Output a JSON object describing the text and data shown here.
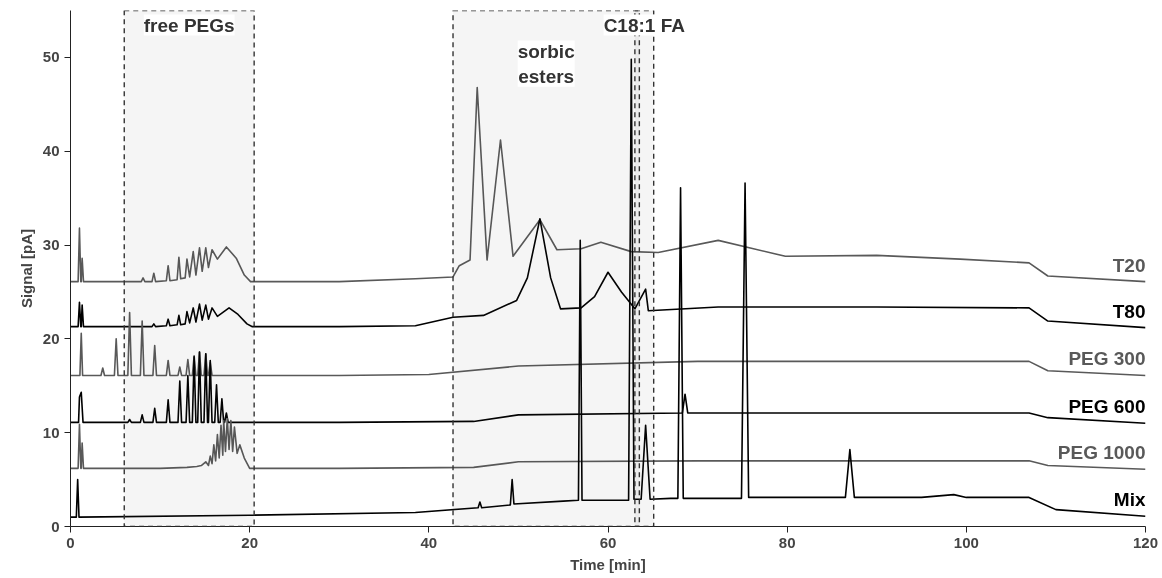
{
  "chart_data": {
    "type": "line",
    "xlabel": "Time [min]",
    "ylabel": "Signal [pA]",
    "xlim": [
      0,
      120
    ],
    "ylim": [
      0,
      55
    ],
    "xticks": [
      0,
      20,
      40,
      60,
      80,
      100,
      120
    ],
    "yticks": [
      0,
      10,
      20,
      30,
      40,
      50
    ],
    "grid": false,
    "marker": "none",
    "line_style": "solid",
    "series": [
      {
        "name": "T20",
        "color": "#595959",
        "x": [
          0,
          0.85,
          1.0,
          1.15,
          1.2,
          1.3,
          1.45,
          7.9,
          8.1,
          8.3,
          9.1,
          9.3,
          9.5,
          10.7,
          10.9,
          11.1,
          11.9,
          12.1,
          12.3,
          12.8,
          13.0,
          13.3,
          13.7,
          14.0,
          14.4,
          14.7,
          15.1,
          15.4,
          15.8,
          16.4,
          17.4,
          18.5,
          19.4,
          20.1,
          30,
          38.5,
          42.7,
          43.4,
          44.6,
          45.4,
          46.5,
          48.0,
          49.4,
          52.4,
          54.3,
          57.0,
          59.2,
          62.6,
          65.6,
          72.3,
          79.8,
          90,
          99.3,
          107,
          109.1,
          120
        ],
        "values": [
          26.1,
          26.1,
          31.8,
          26.1,
          26.1,
          28.6,
          26.1,
          26.1,
          26.5,
          26.1,
          26.1,
          27.0,
          26.1,
          26.2,
          27.8,
          26.2,
          26.3,
          28.7,
          26.4,
          26.5,
          28.5,
          26.6,
          29.3,
          26.8,
          29.7,
          27.2,
          29.7,
          27.6,
          29.5,
          28.5,
          29.8,
          28.6,
          26.8,
          26.1,
          26.1,
          26.4,
          26.6,
          27.8,
          28.4,
          46.8,
          28.4,
          41.2,
          28.8,
          32.7,
          29.5,
          29.6,
          30.3,
          29.3,
          29.2,
          30.5,
          28.8,
          28.9,
          28.5,
          28.1,
          26.7,
          26.1
        ]
      },
      {
        "name": "T80",
        "color": "#000000",
        "x": [
          0,
          0.85,
          1.0,
          1.15,
          1.2,
          1.3,
          1.45,
          9.1,
          9.3,
          9.5,
          10.7,
          10.9,
          11.1,
          11.9,
          12.1,
          12.3,
          12.8,
          13.0,
          13.3,
          13.7,
          14.0,
          14.4,
          14.7,
          15.1,
          15.4,
          15.8,
          16.4,
          17.7,
          18.7,
          19.7,
          20.3,
          30,
          38.5,
          42.7,
          46.1,
          49.8,
          51.0,
          52.4,
          53.6,
          54.7,
          57.0,
          58.5,
          60.0,
          61.5,
          63.0,
          64.2,
          64.5,
          72.3,
          90,
          107,
          109.1,
          120
        ],
        "values": [
          21.3,
          21.3,
          23.9,
          21.3,
          21.3,
          23.6,
          21.3,
          21.3,
          21.6,
          21.3,
          21.4,
          22.1,
          21.4,
          21.5,
          22.5,
          21.5,
          21.6,
          22.9,
          21.7,
          23.3,
          21.8,
          23.7,
          22.0,
          23.6,
          22.1,
          23.3,
          22.4,
          23.3,
          22.6,
          21.6,
          21.3,
          21.3,
          21.4,
          22.3,
          22.5,
          24.1,
          26.5,
          32.8,
          26.5,
          23.2,
          23.3,
          24.5,
          27.1,
          25.0,
          23.2,
          25.3,
          23.0,
          23.4,
          23.4,
          23.3,
          21.9,
          21.2
        ]
      },
      {
        "name": "PEG 300",
        "color": "#595959",
        "x": [
          0,
          1.05,
          1.2,
          1.35,
          3.4,
          3.6,
          3.8,
          4.9,
          5.1,
          5.3,
          6.4,
          6.6,
          6.8,
          7.8,
          8.0,
          8.2,
          9.2,
          9.4,
          9.6,
          10.7,
          10.9,
          11.1,
          12.0,
          12.2,
          12.4,
          12.9,
          13.1,
          13.3,
          13.6,
          13.8,
          14.0,
          14.2,
          14.4,
          14.6,
          14.9,
          15.1,
          15.3,
          15.4,
          15.6,
          15.8,
          30,
          40,
          50,
          70,
          107,
          109.1,
          120
        ],
        "values": [
          16.1,
          16.1,
          20.6,
          16.1,
          16.1,
          16.9,
          16.1,
          16.1,
          20.0,
          16.1,
          16.1,
          22.8,
          16.1,
          16.1,
          21.9,
          16.1,
          16.1,
          19.3,
          16.1,
          16.1,
          17.7,
          16.1,
          16.1,
          17.0,
          16.1,
          16.1,
          17.8,
          16.1,
          16.1,
          18.2,
          16.1,
          16.1,
          18.6,
          16.1,
          16.1,
          18.4,
          16.1,
          16.1,
          17.5,
          16.1,
          16.1,
          16.2,
          17.1,
          17.6,
          17.6,
          16.6,
          16.1
        ]
      },
      {
        "name": "PEG 600",
        "color": "#000000",
        "x": [
          0,
          0.9,
          1.0,
          1.2,
          1.4,
          6.4,
          6.6,
          6.8,
          7.8,
          8.0,
          8.2,
          9.2,
          9.4,
          9.6,
          10.7,
          10.9,
          11.1,
          12.0,
          12.2,
          12.4,
          12.9,
          13.1,
          13.3,
          13.6,
          13.8,
          14.0,
          14.2,
          14.4,
          14.6,
          14.9,
          15.1,
          15.3,
          15.4,
          15.6,
          15.8,
          16.1,
          16.3,
          16.5,
          16.7,
          16.9,
          17.1,
          17.2,
          17.4,
          17.6,
          30,
          45,
          50,
          68.3,
          68.6,
          68.9,
          107,
          109.1,
          120
        ],
        "values": [
          11.1,
          11.1,
          13.8,
          14.3,
          11.1,
          11.1,
          11.4,
          11.1,
          11.1,
          11.9,
          11.1,
          11.1,
          12.6,
          11.1,
          11.1,
          13.5,
          11.1,
          11.1,
          15.5,
          11.1,
          11.1,
          16.1,
          11.1,
          11.1,
          18.1,
          11.1,
          11.1,
          18.6,
          11.1,
          11.1,
          18.4,
          11.1,
          11.1,
          17.7,
          11.1,
          11.1,
          15.1,
          11.1,
          11.1,
          13.6,
          11.1,
          11.1,
          12.1,
          11.1,
          11.1,
          11.2,
          11.9,
          12.1,
          14.1,
          12.1,
          12.1,
          11.6,
          11.0
        ]
      },
      {
        "name": "PEG 1000",
        "color": "#595959",
        "x": [
          0,
          0.85,
          1.0,
          1.15,
          1.2,
          1.3,
          1.45,
          10,
          13.0,
          14.1,
          14.6,
          15.1,
          15.4,
          15.6,
          15.8,
          16.0,
          16.2,
          16.4,
          16.6,
          16.8,
          17.0,
          17.1,
          17.3,
          17.5,
          17.7,
          17.9,
          18.1,
          18.3,
          18.6,
          18.9,
          19.4,
          20.0,
          30,
          45,
          50,
          70,
          107,
          109.1,
          120
        ],
        "values": [
          6.2,
          6.2,
          10.9,
          6.2,
          6.2,
          8.9,
          6.2,
          6.2,
          6.3,
          6.4,
          6.5,
          6.9,
          6.5,
          7.5,
          6.7,
          8.7,
          7.0,
          9.8,
          7.3,
          10.8,
          7.6,
          11.3,
          8.0,
          11.5,
          8.2,
          11.3,
          8.0,
          10.6,
          7.8,
          8.7,
          7.3,
          6.2,
          6.2,
          6.3,
          6.9,
          7.0,
          7.0,
          6.5,
          6.1
        ]
      },
      {
        "name": "Mix",
        "color": "#000000",
        "x": [
          0,
          0.65,
          0.8,
          0.95,
          20,
          38.5,
          45.5,
          45.7,
          45.9,
          49.1,
          49.3,
          49.5,
          55,
          56.7,
          56.9,
          57.1,
          58,
          62.3,
          62.6,
          62.9,
          63.7,
          64.2,
          64.7,
          67,
          67.8,
          68.1,
          68.4,
          72,
          74.9,
          75.3,
          75.7,
          80,
          86.5,
          87.0,
          87.5,
          95,
          98.6,
          100,
          107,
          110,
          120
        ],
        "values": [
          1.0,
          1.0,
          5.0,
          1.0,
          1.2,
          1.5,
          2.0,
          2.6,
          2.0,
          2.3,
          5.0,
          2.4,
          2.7,
          2.8,
          30.5,
          2.8,
          2.8,
          2.8,
          49.8,
          2.9,
          2.9,
          10.8,
          2.9,
          3.0,
          3.0,
          36.1,
          3.0,
          3.0,
          3.0,
          36.6,
          3.1,
          3.1,
          3.1,
          8.2,
          3.1,
          3.1,
          3.4,
          3.1,
          3.1,
          1.8,
          1.1
        ]
      }
    ],
    "bands": [
      {
        "axis": "x",
        "from": 6.0,
        "to": 20.5,
        "color": "#333333",
        "label": "free PEGs"
      },
      {
        "axis": "x",
        "from": 42.7,
        "to": 63.5,
        "color": "#333333",
        "label": "sorbic\nesters"
      },
      {
        "axis": "x",
        "from": 63.0,
        "to": 65.1,
        "color": "#333333",
        "label": "C18:1 FA"
      }
    ]
  }
}
